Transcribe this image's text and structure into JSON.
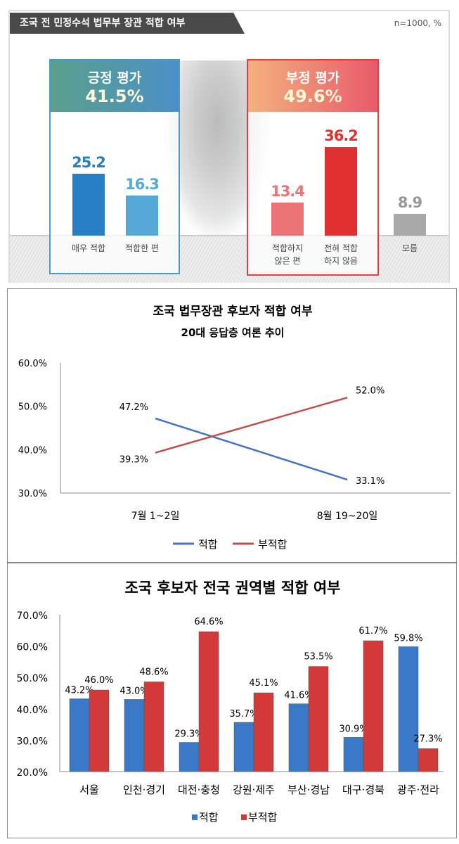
{
  "chart_data": [
    {
      "type": "bar",
      "title": "조국 전 민정수석 법무부 장관 적합 여부",
      "note": "n=1000, %",
      "groups": [
        {
          "label": "긍정 평가",
          "total": "41.5%",
          "color": "#2b7fc4"
        },
        {
          "label": "부정 평가",
          "total": "49.6%",
          "color": "#e03030"
        }
      ],
      "categories": [
        "매우 적합",
        "적합한 편",
        "적합하지 않은 편",
        "전혀 적합 하지 않음",
        "모름"
      ],
      "category_lines": [
        [
          "매우 적합"
        ],
        [
          "적합한 편"
        ],
        [
          "적합하지",
          "않은 편"
        ],
        [
          "전혀 적합",
          "하지 않음"
        ],
        [
          "모름"
        ]
      ],
      "values": [
        25.2,
        16.3,
        13.4,
        36.2,
        8.9
      ],
      "colors": [
        "#2880c4",
        "#56a8d6",
        "#ec7476",
        "#e03030",
        "#a8a8a8"
      ]
    },
    {
      "type": "line",
      "title": "조국 법무장관 후보자 적합 여부",
      "subtitle": "20대 응답층 여론 추이",
      "categories": [
        "7월 1~2일",
        "8월 19~20일"
      ],
      "ylim": [
        30,
        60
      ],
      "yticks": [
        "60.0%",
        "50.0%",
        "40.0%",
        "30.0%"
      ],
      "series": [
        {
          "name": "적합",
          "values": [
            47.2,
            33.1
          ],
          "labels": [
            "47.2%",
            "33.1%"
          ],
          "color": "#4472c4"
        },
        {
          "name": "부적합",
          "values": [
            39.3,
            52.0
          ],
          "labels": [
            "39.3%",
            "52.0%"
          ],
          "color": "#c0504d"
        }
      ]
    },
    {
      "type": "bar",
      "title": "조국 후보자 전국 권역별 적합 여부",
      "ylim": [
        20,
        70
      ],
      "yticks": [
        "70.0%",
        "60.0%",
        "50.0%",
        "40.0%",
        "30.0%",
        "20.0%"
      ],
      "categories": [
        "서울",
        "인천·경기",
        "대전·충청",
        "강원·제주",
        "부산·경남",
        "대구·경북",
        "광주·전라"
      ],
      "series": [
        {
          "name": "적합",
          "values": [
            43.2,
            43.0,
            29.3,
            35.7,
            41.6,
            30.9,
            59.8
          ],
          "color": "#3a78c8"
        },
        {
          "name": "부적합",
          "values": [
            46.0,
            48.6,
            64.6,
            45.1,
            53.5,
            61.7,
            27.3
          ],
          "color": "#d23a3a"
        }
      ]
    }
  ]
}
